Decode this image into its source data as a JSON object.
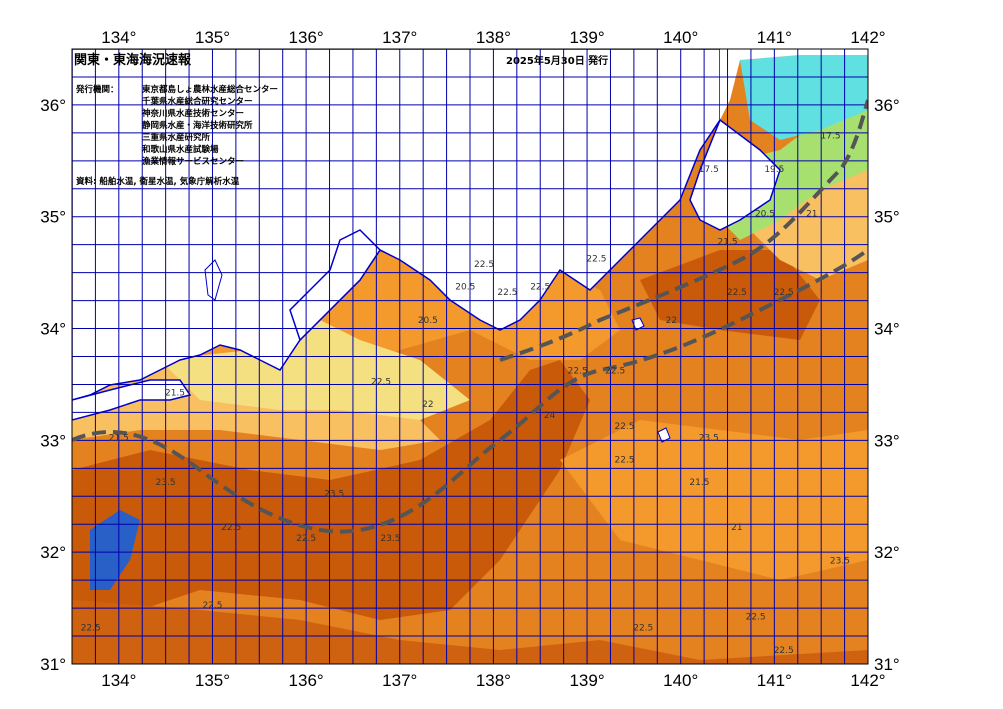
{
  "title": "関東・東海海況速報",
  "issue_date": "2025年5月30日 発行",
  "publishers_heading": "発行機関：",
  "publishers": [
    "東京都島しょ農林水産総合センター",
    "千葉県水産総合研究センター",
    "神奈川県水産技術センター",
    "静岡県水産・海洋技術研究所",
    "三重県水産研究所",
    "和歌山県水産試験場",
    "漁業情報サービスセンター"
  ],
  "sources": "資料: 船舶水温, 衛星水温, 気象庁解析水温",
  "map": {
    "lon_range": [
      133.5,
      142
    ],
    "lat_range": [
      31,
      36.5
    ],
    "lon_ticks": [
      {
        "value": 134,
        "label": "134°"
      },
      {
        "value": 135,
        "label": "135°"
      },
      {
        "value": 136,
        "label": "136°"
      },
      {
        "value": 137,
        "label": "137°"
      },
      {
        "value": 138,
        "label": "138°"
      },
      {
        "value": 139,
        "label": "139°"
      },
      {
        "value": 140,
        "label": "140°"
      },
      {
        "value": 141,
        "label": "141°"
      },
      {
        "value": 142,
        "label": "142°"
      }
    ],
    "lat_ticks": [
      {
        "value": 31,
        "label": "31°"
      },
      {
        "value": 32,
        "label": "32°"
      },
      {
        "value": 33,
        "label": "33°"
      },
      {
        "value": 34,
        "label": "34°"
      },
      {
        "value": 35,
        "label": "35°"
      },
      {
        "value": 36,
        "label": "36°"
      }
    ],
    "colors": {
      "land": "#ffffff",
      "coast": "#0000cc",
      "grid": "#0000aa",
      "kuroshio": "#555555",
      "sst_warmest": "#c85a0a",
      "sst_warm": "#e07818",
      "sst_mid": "#f49a2c",
      "sst_light": "#f8c060",
      "sst_cool": "#f4e080",
      "sst_green": "#a8e070",
      "sst_cyan": "#60e0e0",
      "sst_blue": "#2860c8"
    },
    "contour_labels": [
      {
        "lon": 137.3,
        "lat": 34.05,
        "text": "20.5"
      },
      {
        "lon": 137.7,
        "lat": 34.35,
        "text": "20.5"
      },
      {
        "lon": 137.9,
        "lat": 34.55,
        "text": "22.5"
      },
      {
        "lon": 138.15,
        "lat": 34.3,
        "text": "22.5"
      },
      {
        "lon": 138.5,
        "lat": 34.35,
        "text": "22.5"
      },
      {
        "lon": 139.1,
        "lat": 34.6,
        "text": "22.5"
      },
      {
        "lon": 138.6,
        "lat": 33.2,
        "text": "24"
      },
      {
        "lon": 138.9,
        "lat": 33.6,
        "text": "22.5"
      },
      {
        "lon": 139.3,
        "lat": 33.6,
        "text": "22.5"
      },
      {
        "lon": 139.9,
        "lat": 34.05,
        "text": "22"
      },
      {
        "lon": 140.6,
        "lat": 34.3,
        "text": "22.5"
      },
      {
        "lon": 141.1,
        "lat": 34.3,
        "text": "22.5"
      },
      {
        "lon": 140.3,
        "lat": 33.0,
        "text": "23.5"
      },
      {
        "lon": 139.4,
        "lat": 33.1,
        "text": "22.5"
      },
      {
        "lon": 139.4,
        "lat": 32.8,
        "text": "22.5"
      },
      {
        "lon": 140.2,
        "lat": 32.6,
        "text": "21.5"
      },
      {
        "lon": 140.6,
        "lat": 32.2,
        "text": "21"
      },
      {
        "lon": 141.7,
        "lat": 31.9,
        "text": "23.5"
      },
      {
        "lon": 140.8,
        "lat": 31.4,
        "text": "22.5"
      },
      {
        "lon": 141.1,
        "lat": 31.1,
        "text": "22.5"
      },
      {
        "lon": 139.6,
        "lat": 31.3,
        "text": "22.5"
      },
      {
        "lon": 136.3,
        "lat": 32.5,
        "text": "23.5"
      },
      {
        "lon": 136.0,
        "lat": 32.1,
        "text": "22.5"
      },
      {
        "lon": 136.9,
        "lat": 32.1,
        "text": "23.5"
      },
      {
        "lon": 135.2,
        "lat": 32.2,
        "text": "22.5"
      },
      {
        "lon": 134.5,
        "lat": 32.6,
        "text": "23.5"
      },
      {
        "lon": 134.0,
        "lat": 33.0,
        "text": "21.5"
      },
      {
        "lon": 134.6,
        "lat": 33.4,
        "text": "21.5"
      },
      {
        "lon": 135.0,
        "lat": 31.5,
        "text": "22.5"
      },
      {
        "lon": 133.7,
        "lat": 31.3,
        "text": "22.5"
      },
      {
        "lon": 140.3,
        "lat": 35.4,
        "text": "17.5"
      },
      {
        "lon": 141.0,
        "lat": 35.4,
        "text": "19.5"
      },
      {
        "lon": 140.9,
        "lat": 35.0,
        "text": "20.5"
      },
      {
        "lon": 141.4,
        "lat": 35.0,
        "text": "21"
      },
      {
        "lon": 140.5,
        "lat": 34.75,
        "text": "21.5"
      },
      {
        "lon": 141.6,
        "lat": 35.7,
        "text": "17.5"
      },
      {
        "lon": 136.8,
        "lat": 33.5,
        "text": "22.5"
      },
      {
        "lon": 137.3,
        "lat": 33.3,
        "text": "22"
      }
    ]
  }
}
